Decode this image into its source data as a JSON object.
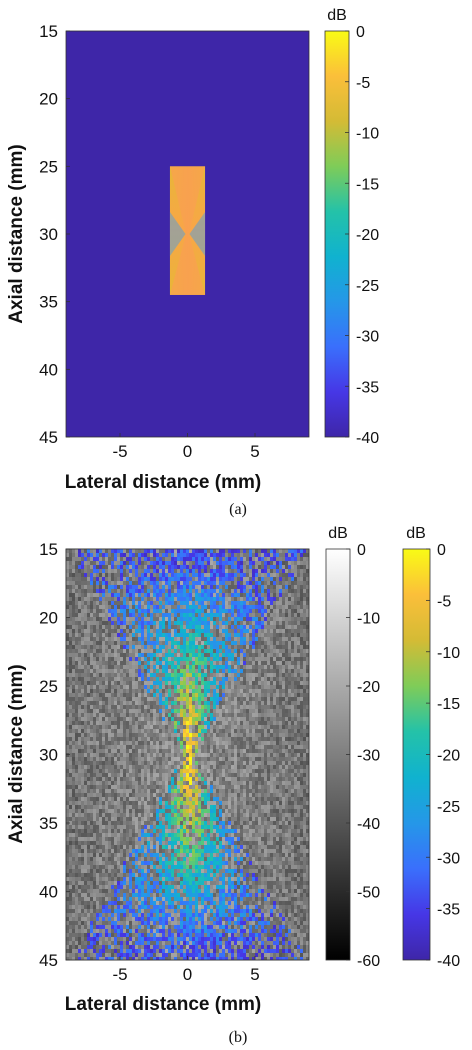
{
  "chart_data": [
    {
      "panel": "(a)",
      "type": "heatmap",
      "xlabel": "Lateral distance (mm)",
      "ylabel": "Axial distance (mm)",
      "xlim": [
        -9,
        9
      ],
      "ylim": [
        15,
        45
      ],
      "y_reversed": true,
      "xticks": [
        "-5",
        "0",
        "5"
      ],
      "xtick_values": [
        -5,
        0,
        5
      ],
      "yticks": [
        "15",
        "20",
        "25",
        "30",
        "35",
        "40",
        "45"
      ],
      "ytick_values": [
        15,
        20,
        25,
        30,
        35,
        40,
        45
      ],
      "background_level_dB": -40,
      "rect_region": {
        "x": [
          -1.3,
          1.3
        ],
        "y": [
          25,
          34.5
        ],
        "level_dB_range": [
          -7,
          -3
        ],
        "waist_at": 30
      },
      "colorbar": {
        "unit": "dB",
        "colormap": "parula",
        "range": [
          -40,
          0
        ],
        "ticks": [
          "0",
          "-5",
          "-10",
          "-15",
          "-20",
          "-25",
          "-30",
          "-35",
          "-40"
        ],
        "tick_values": [
          0,
          -5,
          -10,
          -15,
          -20,
          -25,
          -30,
          -35,
          -40
        ]
      }
    },
    {
      "panel": "(b)",
      "type": "heatmap",
      "xlabel": "Lateral distance (mm)",
      "ylabel": "Axial distance (mm)",
      "xlim": [
        -9,
        9
      ],
      "ylim": [
        15,
        45
      ],
      "y_reversed": true,
      "xticks": [
        "-5",
        "0",
        "5"
      ],
      "xtick_values": [
        -5,
        0,
        5
      ],
      "yticks": [
        "15",
        "20",
        "25",
        "30",
        "35",
        "40",
        "45"
      ],
      "ytick_values": [
        15,
        20,
        25,
        30,
        35,
        40,
        45
      ],
      "overlay_focus_at": 30,
      "colorbars": [
        {
          "unit": "dB",
          "colormap": "gray",
          "range": [
            -60,
            0
          ],
          "ticks": [
            "0",
            "-10",
            "-20",
            "-30",
            "-40",
            "-50",
            "-60"
          ],
          "tick_values": [
            0,
            -10,
            -20,
            -30,
            -40,
            -50,
            -60
          ]
        },
        {
          "unit": "dB",
          "colormap": "parula",
          "range": [
            -40,
            0
          ],
          "ticks": [
            "0",
            "-5",
            "-10",
            "-15",
            "-20",
            "-25",
            "-30",
            "-35",
            "-40"
          ],
          "tick_values": [
            0,
            -5,
            -10,
            -15,
            -20,
            -25,
            -30,
            -35,
            -40
          ]
        }
      ]
    }
  ],
  "captions": {
    "a": "(a)",
    "b": "(b)"
  },
  "colors": {
    "background_blue": "#3e26a8",
    "parula_stops": [
      "#3e26a8",
      "#4637e6",
      "#3a6ffc",
      "#2597e8",
      "#10b2cf",
      "#24c2a8",
      "#7fcc58",
      "#d4bb35",
      "#fbbf3a",
      "#f9fb15"
    ]
  }
}
